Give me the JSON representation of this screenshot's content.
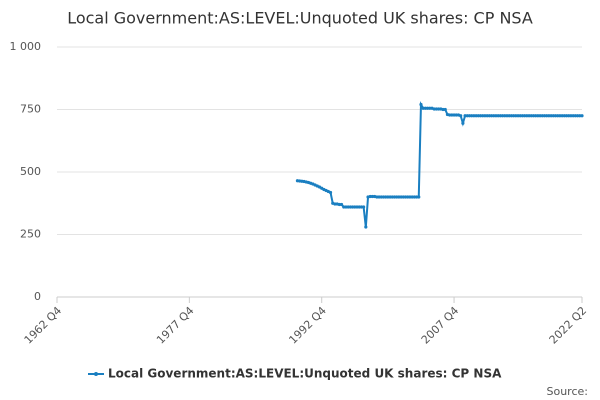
{
  "chart_data": {
    "type": "line",
    "title": "Local Government:AS:LEVEL:Unquoted UK shares: CP NSA",
    "source": "Source:",
    "xlim": [
      1962.75,
      2022.25
    ],
    "xticks": [
      {
        "value": 1962.75,
        "label": "1962 Q4"
      },
      {
        "value": 1977.75,
        "label": "1977 Q4"
      },
      {
        "value": 1992.75,
        "label": "1992 Q4"
      },
      {
        "value": 2007.75,
        "label": "2007 Q4"
      },
      {
        "value": 2022.25,
        "label": "2022 Q2"
      }
    ],
    "ylim": [
      0,
      1000
    ],
    "yticks": [
      0,
      250,
      500,
      750,
      {
        "value": 1000,
        "label": "1 000"
      }
    ],
    "grid": true,
    "legend": "bottom",
    "series": [
      {
        "name": "Local Government:AS:LEVEL:Unquoted UK shares: CP NSA",
        "color": "#1a7fc1",
        "x": [
          1990,
          1990.25,
          1990.5,
          1990.75,
          1991,
          1991.25,
          1991.5,
          1991.75,
          1992,
          1992.25,
          1992.5,
          1992.75,
          1993,
          1993.25,
          1993.5,
          1993.75,
          1994,
          1994.25,
          1994.5,
          1994.75,
          1995,
          1995.25,
          1995.5,
          1995.75,
          1996,
          1996.25,
          1996.5,
          1996.75,
          1997,
          1997.25,
          1997.5,
          1997.75,
          1998,
          1998.25,
          1998.5,
          1998.75,
          1999,
          1999.25,
          1999.5,
          1999.75,
          2000,
          2000.25,
          2000.5,
          2000.75,
          2001,
          2001.25,
          2001.5,
          2001.75,
          2002,
          2002.25,
          2002.5,
          2002.75,
          2003,
          2003.25,
          2003.5,
          2003.75,
          2004,
          2004.25,
          2004.5,
          2004.75,
          2005,
          2005.25,
          2005.5,
          2005.75,
          2006,
          2006.25,
          2006.5,
          2006.75,
          2007,
          2007.25,
          2007.5,
          2007.75,
          2008,
          2008.25,
          2008.5,
          2008.75,
          2009,
          2009.25,
          2009.5,
          2009.75,
          2010,
          2010.25,
          2010.5,
          2010.75,
          2011,
          2011.25,
          2011.5,
          2011.75,
          2012,
          2012.25,
          2012.5,
          2012.75,
          2013,
          2013.25,
          2013.5,
          2013.75,
          2014,
          2014.25,
          2014.5,
          2014.75,
          2015,
          2015.25,
          2015.5,
          2015.75,
          2016,
          2016.25,
          2016.5,
          2016.75,
          2017,
          2017.25,
          2017.5,
          2017.75,
          2018,
          2018.25,
          2018.5,
          2018.75,
          2019,
          2019.25,
          2019.5,
          2019.75,
          2020,
          2020.25,
          2020.5,
          2020.75,
          2021,
          2021.25,
          2021.5,
          2021.75,
          2022,
          2022.25
        ],
        "values": [
          465,
          464,
          463,
          462,
          460,
          458,
          455,
          452,
          448,
          444,
          440,
          435,
          430,
          426,
          422,
          418,
          375,
          372,
          372,
          370,
          370,
          360,
          360,
          360,
          360,
          360,
          360,
          360,
          360,
          360,
          360,
          280,
          400,
          402,
          402,
          402,
          400,
          400,
          400,
          400,
          400,
          400,
          400,
          400,
          400,
          400,
          400,
          400,
          400,
          400,
          400,
          400,
          400,
          400,
          400,
          400,
          770,
          755,
          755,
          755,
          755,
          755,
          752,
          752,
          752,
          752,
          750,
          750,
          730,
          728,
          728,
          728,
          728,
          728,
          725,
          695,
          725,
          725,
          725,
          725,
          725,
          725,
          725,
          725,
          725,
          725,
          725,
          725,
          725,
          725,
          725,
          725,
          725,
          725,
          725,
          725,
          725,
          725,
          725,
          725,
          725,
          725,
          725,
          725,
          725,
          725,
          725,
          725,
          725,
          725,
          725,
          725,
          725,
          725,
          725,
          725,
          725,
          725,
          725,
          725,
          725,
          725,
          725,
          725,
          725,
          725,
          725,
          725,
          725,
          725
        ]
      }
    ]
  }
}
